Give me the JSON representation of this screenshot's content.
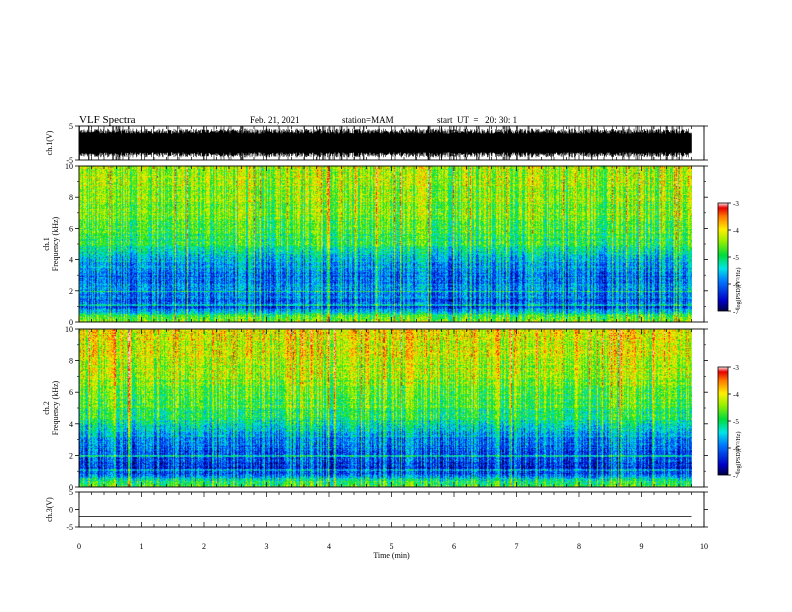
{
  "header": {
    "title": "VLF Spectra",
    "date": "Feb. 21, 2021",
    "station": "station=MAM",
    "start": "start  UT  =   20: 30: 1"
  },
  "chart_data": [
    {
      "type": "line",
      "panel": "ch1-waveform",
      "ylabel": "ch.1(V)",
      "ylim": [
        -5,
        5
      ],
      "yticks": [
        "5",
        "-5"
      ],
      "xlim": [
        0,
        10
      ],
      "x_units": "min",
      "data_extent_min": 9.8,
      "waveform": "dense oscillation filling approximately -5 to 5 V with frequent full-scale spikes"
    },
    {
      "type": "heatmap",
      "panel": "ch1-spectrogram",
      "ylabel": "Frequency (kHz)",
      "channel_label": "ch.1",
      "ylim": [
        0,
        10
      ],
      "yticks": [
        "0",
        "2",
        "4",
        "6",
        "8",
        "10"
      ],
      "xlim": [
        0,
        10
      ],
      "data_extent_min": 9.8,
      "colorbar": {
        "label": "log(PSD)(V²/Hz)",
        "range": [
          -7,
          -3
        ],
        "ticks": [
          "-3",
          "-4",
          "-5",
          "-6",
          "-7"
        ]
      },
      "approx_log_psd_by_freq_khz": [
        {
          "f": 0.3,
          "v": -4.6
        },
        {
          "f": 1.0,
          "v": -6.2
        },
        {
          "f": 2.0,
          "v": -5.8
        },
        {
          "f": 3.0,
          "v": -6.0
        },
        {
          "f": 4.0,
          "v": -5.6
        },
        {
          "f": 5.0,
          "v": -5.0
        },
        {
          "f": 6.0,
          "v": -4.8
        },
        {
          "f": 7.0,
          "v": -4.6
        },
        {
          "f": 8.0,
          "v": -4.5
        },
        {
          "f": 9.0,
          "v": -4.4
        },
        {
          "f": 10.0,
          "v": -4.3
        }
      ]
    },
    {
      "type": "heatmap",
      "panel": "ch2-spectrogram",
      "ylabel": "Frequency (kHz)",
      "channel_label": "ch.2",
      "ylim": [
        0,
        10
      ],
      "yticks": [
        "0",
        "2",
        "4",
        "6",
        "8",
        "10"
      ],
      "xlim": [
        0,
        10
      ],
      "data_extent_min": 9.8,
      "colorbar": {
        "label": "log(PSD)(V²/Hz)",
        "range": [
          -7,
          -3
        ],
        "ticks": [
          "-3",
          "-4",
          "-5",
          "-6",
          "-7"
        ]
      },
      "approx_log_psd_by_freq_khz": [
        {
          "f": 0.3,
          "v": -4.8
        },
        {
          "f": 1.0,
          "v": -6.3
        },
        {
          "f": 2.0,
          "v": -6.1
        },
        {
          "f": 3.0,
          "v": -5.8
        },
        {
          "f": 4.0,
          "v": -5.2
        },
        {
          "f": 5.0,
          "v": -4.8
        },
        {
          "f": 6.0,
          "v": -4.6
        },
        {
          "f": 7.0,
          "v": -4.4
        },
        {
          "f": 8.0,
          "v": -4.2
        },
        {
          "f": 9.0,
          "v": -4.1
        },
        {
          "f": 10.0,
          "v": -4.0
        }
      ]
    },
    {
      "type": "line",
      "panel": "ch3-waveform",
      "ylabel": "ch.3(V)",
      "ylim": [
        -5,
        5
      ],
      "yticks": [
        "5",
        "0",
        "-5"
      ],
      "xlim": [
        0,
        10
      ],
      "xlabel": "Time  (min)",
      "xticks": [
        "0",
        "1",
        "2",
        "3",
        "4",
        "5",
        "6",
        "7",
        "8",
        "9",
        "10"
      ],
      "data_extent_min": 9.8,
      "constant_value": -2
    }
  ]
}
